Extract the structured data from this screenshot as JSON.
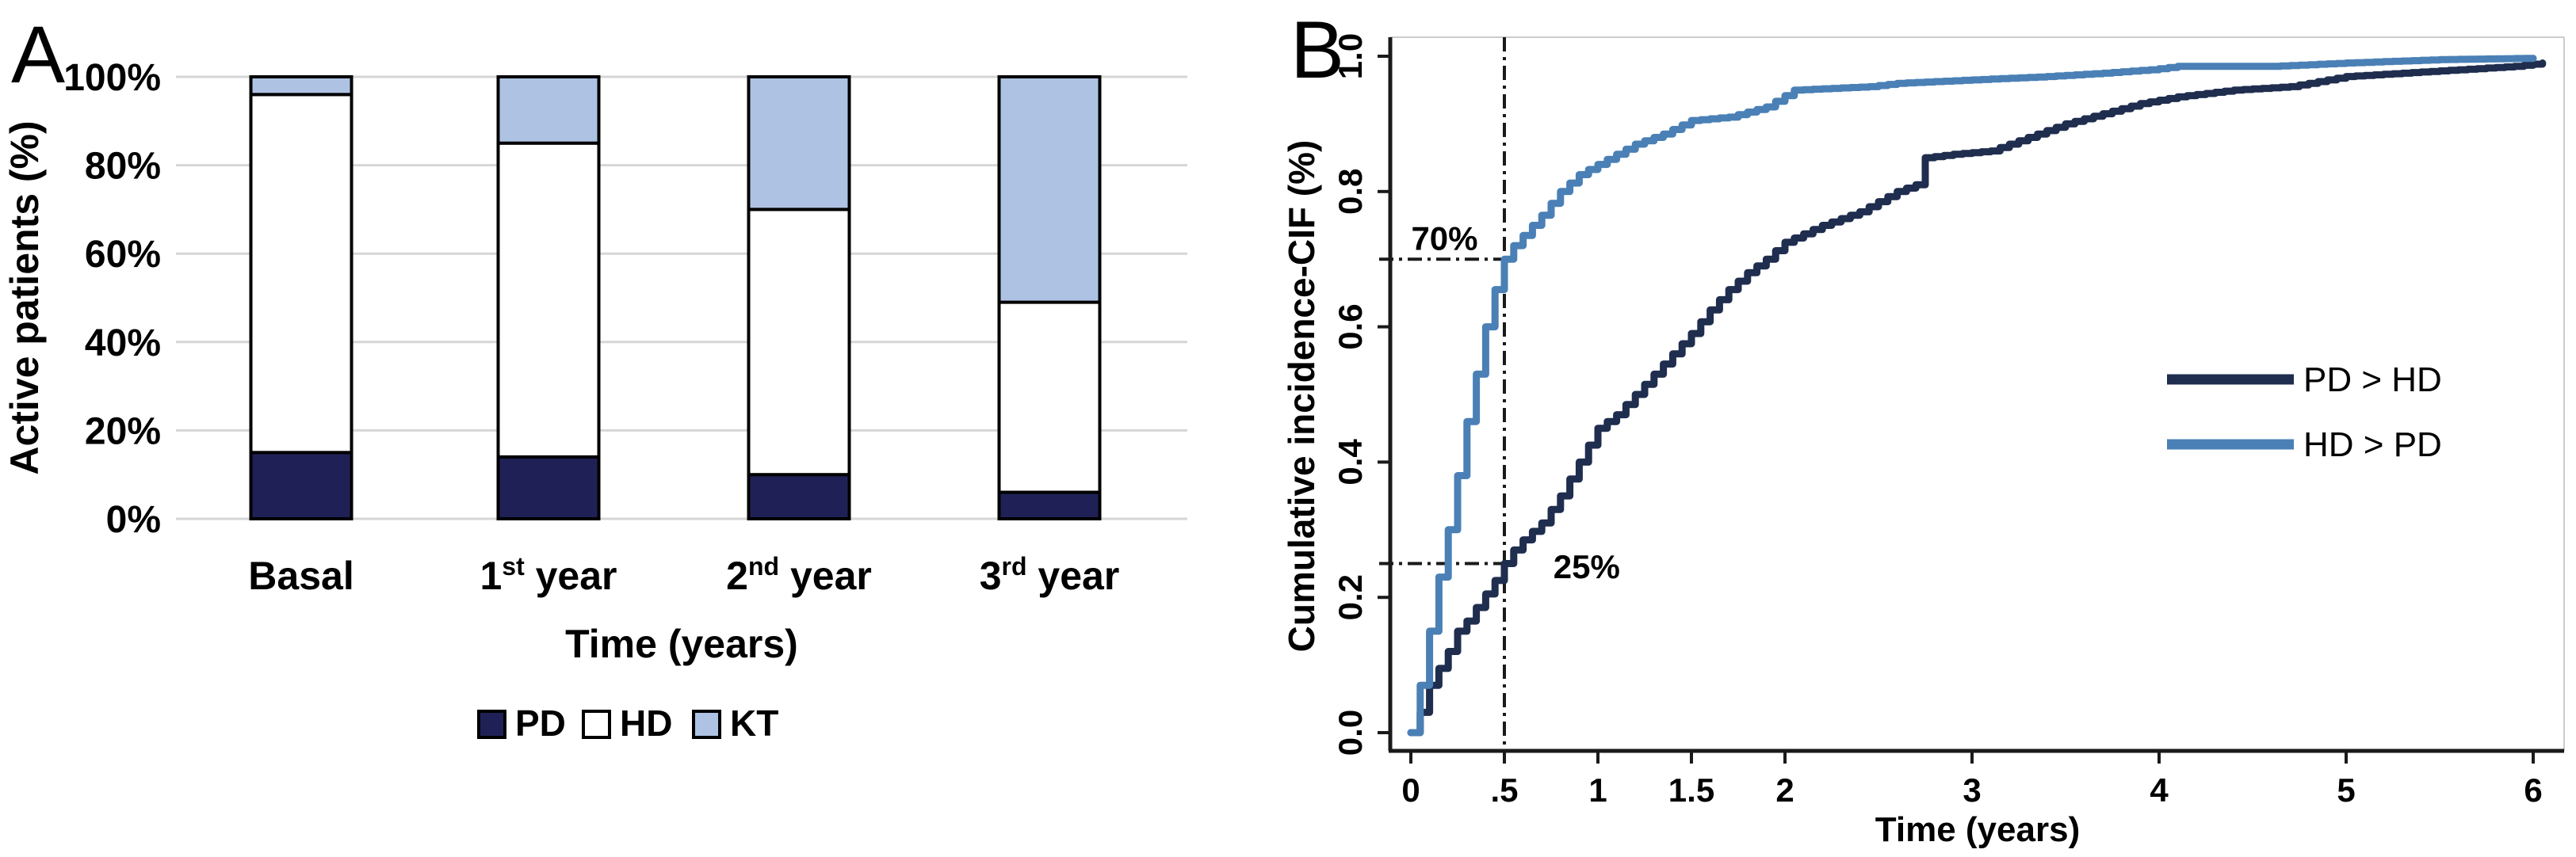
{
  "figure": {
    "background": "#ffffff",
    "panel_a_letter": "A",
    "panel_b_letter": "B"
  },
  "colors": {
    "pd_fill": "#1f2156",
    "hd_fill": "#ffffff",
    "kt_fill": "#aec3e4",
    "bar_border": "#000000",
    "gridline": "#d6d6d6",
    "frame_gray": "#cccccc",
    "axis_black": "#1a1a1a",
    "curve_pd_hd": "#1f2d4e",
    "curve_hd_pd": "#4a80b5",
    "reference_line": "#1a1a1a"
  },
  "chart_data": [
    {
      "id": "active-patients-stacked-bars",
      "type": "bar",
      "stacked": true,
      "xlabel": "Time (years)",
      "ylabel": "Active patients (%)",
      "ylim": [
        0,
        100
      ],
      "grid": true,
      "legend_position": "bottom",
      "y_ticks": [
        0,
        20,
        40,
        60,
        80,
        100
      ],
      "y_tick_labels": [
        "0%",
        "20%",
        "40%",
        "60%",
        "80%",
        "100%"
      ],
      "categories": [
        {
          "label": "Basal",
          "base": "Basal",
          "sup": "",
          "rest": ""
        },
        {
          "label": "1st year",
          "base": "1",
          "sup": "st",
          "rest": " year"
        },
        {
          "label": "2nd year",
          "base": "2",
          "sup": "nd",
          "rest": " year"
        },
        {
          "label": "3rd year",
          "base": "3",
          "sup": "rd",
          "rest": " year"
        }
      ],
      "series": [
        {
          "name": "PD",
          "color": "#1f2156",
          "values": [
            15,
            14,
            10,
            6
          ]
        },
        {
          "name": "HD",
          "color": "#ffffff",
          "values": [
            81,
            71,
            60,
            43
          ]
        },
        {
          "name": "KT",
          "color": "#aec3e4",
          "values": [
            4,
            15,
            30,
            51
          ]
        }
      ]
    },
    {
      "id": "cumulative-incidence-curves",
      "type": "line",
      "line_style": "step",
      "xlabel": "Time (years)",
      "ylabel": "Cumulative incidence-CIF (%)",
      "xlim": [
        0,
        6.17
      ],
      "ylim": [
        0,
        1.0
      ],
      "grid": false,
      "legend_position": "middle-right",
      "x_ticks": [
        0,
        0.5,
        1,
        1.5,
        2,
        3,
        4,
        5,
        6
      ],
      "x_tick_labels": [
        "0",
        ".5",
        "1",
        "1.5",
        "2",
        "3",
        "4",
        "5",
        "6"
      ],
      "y_ticks": [
        0.0,
        0.2,
        0.4,
        0.6,
        0.8,
        1.0
      ],
      "y_tick_labels": [
        "0.0",
        "0.2",
        "0.4",
        "0.6",
        "0.8",
        "1.0"
      ],
      "reference_lines": {
        "vertical_x": 0.5,
        "horizontal": [
          {
            "y": 0.7,
            "to_x": 0.5
          },
          {
            "y": 0.25,
            "to_x": 0.5
          }
        ]
      },
      "annotations": [
        {
          "text": "70%",
          "x": 0.18,
          "y": 0.73
        },
        {
          "text": "25%",
          "x": 0.94,
          "y": 0.245
        }
      ],
      "series": [
        {
          "name": "PD > HD",
          "color": "#1f2d4e",
          "points": [
            [
              0,
              0
            ],
            [
              0.05,
              0.03
            ],
            [
              0.1,
              0.07
            ],
            [
              0.15,
              0.095
            ],
            [
              0.2,
              0.12
            ],
            [
              0.25,
              0.15
            ],
            [
              0.3,
              0.165
            ],
            [
              0.35,
              0.185
            ],
            [
              0.4,
              0.205
            ],
            [
              0.45,
              0.225
            ],
            [
              0.5,
              0.25
            ],
            [
              0.55,
              0.27
            ],
            [
              0.6,
              0.285
            ],
            [
              0.7,
              0.31
            ],
            [
              0.75,
              0.33
            ],
            [
              0.8,
              0.35
            ],
            [
              0.9,
              0.4
            ],
            [
              1.0,
              0.45
            ],
            [
              1.1,
              0.47
            ],
            [
              1.2,
              0.5
            ],
            [
              1.3,
              0.53
            ],
            [
              1.4,
              0.56
            ],
            [
              1.5,
              0.59
            ],
            [
              1.6,
              0.625
            ],
            [
              1.7,
              0.655
            ],
            [
              1.8,
              0.68
            ],
            [
              1.9,
              0.7
            ],
            [
              2.0,
              0.725
            ],
            [
              2.2,
              0.75
            ],
            [
              2.4,
              0.77
            ],
            [
              2.6,
              0.8
            ],
            [
              2.7,
              0.81
            ],
            [
              2.75,
              0.85
            ],
            [
              2.9,
              0.855
            ],
            [
              3.1,
              0.86
            ],
            [
              3.3,
              0.88
            ],
            [
              3.5,
              0.9
            ],
            [
              3.7,
              0.915
            ],
            [
              3.9,
              0.93
            ],
            [
              4.1,
              0.94
            ],
            [
              4.4,
              0.95
            ],
            [
              4.7,
              0.955
            ],
            [
              5.0,
              0.97
            ],
            [
              5.3,
              0.975
            ],
            [
              5.6,
              0.98
            ],
            [
              5.9,
              0.985
            ],
            [
              6.05,
              0.99
            ]
          ]
        },
        {
          "name": "HD > PD",
          "color": "#4a80b5",
          "points": [
            [
              0,
              0
            ],
            [
              0.05,
              0.07
            ],
            [
              0.1,
              0.15
            ],
            [
              0.15,
              0.23
            ],
            [
              0.2,
              0.3
            ],
            [
              0.25,
              0.38
            ],
            [
              0.3,
              0.46
            ],
            [
              0.35,
              0.53
            ],
            [
              0.4,
              0.6
            ],
            [
              0.45,
              0.655
            ],
            [
              0.5,
              0.7
            ],
            [
              0.55,
              0.72
            ],
            [
              0.6,
              0.735
            ],
            [
              0.7,
              0.765
            ],
            [
              0.8,
              0.8
            ],
            [
              0.9,
              0.825
            ],
            [
              1.0,
              0.84
            ],
            [
              1.1,
              0.855
            ],
            [
              1.2,
              0.87
            ],
            [
              1.35,
              0.885
            ],
            [
              1.5,
              0.905
            ],
            [
              1.7,
              0.91
            ],
            [
              1.9,
              0.925
            ],
            [
              2.05,
              0.95
            ],
            [
              2.45,
              0.955
            ],
            [
              2.6,
              0.96
            ],
            [
              3.0,
              0.965
            ],
            [
              3.4,
              0.97
            ],
            [
              3.7,
              0.975
            ],
            [
              3.95,
              0.98
            ],
            [
              4.1,
              0.985
            ],
            [
              4.6,
              0.985
            ],
            [
              5.0,
              0.99
            ],
            [
              5.5,
              0.995
            ],
            [
              6.0,
              0.997
            ]
          ]
        }
      ]
    }
  ]
}
